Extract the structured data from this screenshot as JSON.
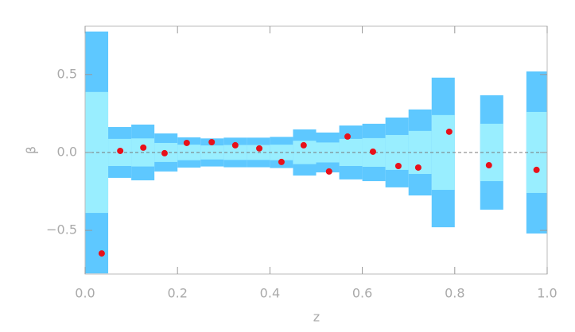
{
  "chart_data": {
    "type": "scatter",
    "xlabel": "z",
    "ylabel": "β",
    "x": [
      0.036,
      0.076,
      0.126,
      0.172,
      0.22,
      0.274,
      0.325,
      0.377,
      0.425,
      0.473,
      0.528,
      0.568,
      0.623,
      0.678,
      0.721,
      0.788,
      0.874,
      0.977
    ],
    "values": [
      -0.648,
      0.01,
      0.031,
      -0.005,
      0.061,
      0.066,
      0.046,
      0.026,
      -0.061,
      0.046,
      -0.122,
      0.102,
      0.005,
      -0.087,
      -0.097,
      0.133,
      -0.082,
      -0.112
    ],
    "color": "#e8101a",
    "bands": [
      {
        "x": [
          0.0,
          0.05
        ],
        "inner": 0.388,
        "outer": 0.776
      },
      {
        "x": [
          0.05,
          0.1
        ],
        "inner": 0.087,
        "outer": 0.163
      },
      {
        "x": [
          0.1,
          0.15
        ],
        "inner": 0.09,
        "outer": 0.179
      },
      {
        "x": [
          0.15,
          0.2
        ],
        "inner": 0.061,
        "outer": 0.122
      },
      {
        "x": [
          0.2,
          0.25
        ],
        "inner": 0.05,
        "outer": 0.097
      },
      {
        "x": [
          0.25,
          0.3
        ],
        "inner": 0.045,
        "outer": 0.09
      },
      {
        "x": [
          0.3,
          0.35
        ],
        "inner": 0.048,
        "outer": 0.095
      },
      {
        "x": [
          0.35,
          0.4
        ],
        "inner": 0.048,
        "outer": 0.095
      },
      {
        "x": [
          0.4,
          0.45
        ],
        "inner": 0.05,
        "outer": 0.1
      },
      {
        "x": [
          0.45,
          0.5
        ],
        "inner": 0.075,
        "outer": 0.148
      },
      {
        "x": [
          0.5,
          0.55
        ],
        "inner": 0.064,
        "outer": 0.128
      },
      {
        "x": [
          0.55,
          0.6
        ],
        "inner": 0.087,
        "outer": 0.173
      },
      {
        "x": [
          0.6,
          0.65
        ],
        "inner": 0.092,
        "outer": 0.184
      },
      {
        "x": [
          0.65,
          0.7
        ],
        "inner": 0.112,
        "outer": 0.224
      },
      {
        "x": [
          0.7,
          0.75
        ],
        "inner": 0.138,
        "outer": 0.276
      },
      {
        "x": [
          0.75,
          0.8
        ],
        "inner": 0.24,
        "outer": 0.48
      },
      {
        "x": [
          0.855,
          0.905
        ],
        "inner": 0.184,
        "outer": 0.367
      },
      {
        "x": [
          0.955,
          1.0
        ],
        "inner": 0.26,
        "outer": 0.52
      }
    ],
    "inner_color": "#99eeff",
    "outer_color": "#5ec8ff",
    "xlim": [
      0,
      1
    ],
    "ylim": [
      -0.78,
      0.81
    ],
    "xticks": [
      {
        "value": 0,
        "label": "0.0"
      },
      {
        "value": 0.2,
        "label": "0.2"
      },
      {
        "value": 0.4,
        "label": "0.4"
      },
      {
        "value": 0.6,
        "label": "0.6"
      },
      {
        "value": 0.8,
        "label": "0.8"
      },
      {
        "value": 1,
        "label": "1.0"
      }
    ],
    "yticks": [
      {
        "value": -0.5,
        "label": "−0.5"
      },
      {
        "value": 0,
        "label": "0.0"
      },
      0.5
    ],
    "zero_line": true
  }
}
